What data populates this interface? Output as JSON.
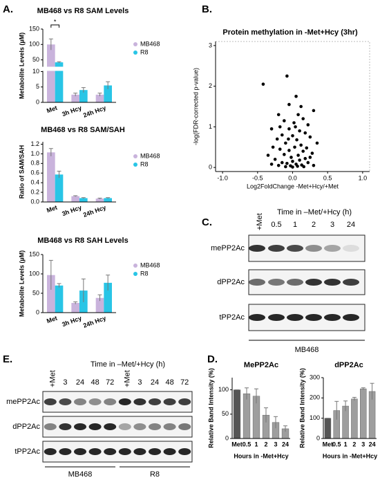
{
  "panel_labels": [
    "A.",
    "B.",
    "C.",
    "D.",
    "E."
  ],
  "chart_data": [
    {
      "type": "bar",
      "title": "MB468 vs R8 SAM Levels",
      "y_label": "Metabolite Levels (µM)",
      "annotation": "*",
      "categories": [
        "Met",
        "3h Hcy",
        "24h Hcy"
      ],
      "series": [
        {
          "name": "MB468",
          "color": "#c9b3dc",
          "values": [
            100,
            2.5,
            2.5
          ],
          "errors": [
            18,
            0.5,
            0.5
          ]
        },
        {
          "name": "R8",
          "color": "#29c5e6",
          "values": [
            42,
            4,
            5.5
          ],
          "errors": [
            2,
            0.8,
            1.2
          ]
        }
      ],
      "ylim": [
        0,
        150
      ],
      "ybreak": [
        10,
        30
      ],
      "yticks": [
        0,
        5,
        10,
        50,
        100,
        150
      ]
    },
    {
      "type": "bar",
      "title": "MB468 vs R8 SAM/SAH",
      "y_label": "Ratio of SAM/SAH",
      "categories": [
        "Met",
        "3h Hcy",
        "24h Hcy"
      ],
      "series": [
        {
          "name": "MB468",
          "color": "#c9b3dc",
          "values": [
            1.03,
            0.12,
            0.07
          ],
          "errors": [
            0.08,
            0.01,
            0.01
          ]
        },
        {
          "name": "R8",
          "color": "#29c5e6",
          "values": [
            0.57,
            0.08,
            0.08
          ],
          "errors": [
            0.07,
            0.01,
            0.01
          ]
        }
      ],
      "ylim": [
        0,
        1.25
      ],
      "yticks": [
        {
          "value": 0,
          "label": "0.0"
        },
        0.2,
        0.4,
        0.6,
        0.8,
        {
          "value": 1,
          "label": "1.0"
        },
        1.2
      ]
    },
    {
      "type": "bar",
      "title": "MB468 vs R8 SAH Levels",
      "y_label": "Metabolite Levels (µM)",
      "categories": [
        "Met",
        "3h Hcy",
        "24h Hcy"
      ],
      "series": [
        {
          "name": "MB468",
          "color": "#c9b3dc",
          "values": [
            97,
            25,
            38
          ],
          "errors": [
            38,
            3,
            8
          ]
        },
        {
          "name": "R8",
          "color": "#29c5e6",
          "values": [
            70,
            57,
            77
          ],
          "errors": [
            5,
            30,
            20
          ]
        }
      ],
      "ylim": [
        0,
        150
      ],
      "yticks": [
        0,
        50,
        100,
        150
      ]
    },
    {
      "type": "scatter",
      "title": "Protein methylation in -Met+Hcy (3hr)",
      "x_label": "Log2FoldChange -Met+Hcy/+Met",
      "y_label": "-log(FDR-corrected p-value)",
      "color": "#000000",
      "x": [
        -0.42,
        -0.08,
        0.05,
        -0.05,
        0.12,
        0.3,
        -0.2,
        0.08,
        0.15,
        -0.12,
        0.02,
        0.22,
        -0.3,
        -0.05,
        0.1,
        0.18,
        -0.15,
        0.0,
        0.25,
        -0.22,
        0.06,
        0.35,
        -0.1,
        0.12,
        -0.28,
        0.03,
        0.2,
        -0.18,
        -0.05,
        0.15,
        0.28,
        -0.35,
        -0.12,
        0.08,
        -0.02,
        0.18,
        -0.25,
        0.1,
        0.0,
        -0.15,
        0.22,
        -0.08,
        0.05,
        0.13,
        -0.2,
        0.3,
        -0.03,
        0.07,
        -0.1,
        0.16,
        0.0,
        -0.3,
        0.25,
        -0.06,
        0.04,
        -0.18
      ],
      "values": [
        2.05,
        2.25,
        1.75,
        1.55,
        1.5,
        1.4,
        1.3,
        1.3,
        1.2,
        1.15,
        1.1,
        1.05,
        0.95,
        0.95,
        0.9,
        0.85,
        0.8,
        0.78,
        0.75,
        0.7,
        0.68,
        0.6,
        0.6,
        0.55,
        0.5,
        0.5,
        0.48,
        0.45,
        0.42,
        0.4,
        0.35,
        0.3,
        0.32,
        0.3,
        0.25,
        0.22,
        0.2,
        0.18,
        0.15,
        0.12,
        0.12,
        0.1,
        0.08,
        0.06,
        0.05,
        0.05,
        0.04,
        0.03,
        0.02,
        0.02,
        0.01,
        0.08,
        0.25,
        0.7,
        1.0,
        1.0
      ],
      "xlim": [
        -1.1,
        1.1
      ],
      "xticks": [
        {
          "value": -1,
          "label": "-1.0"
        },
        -0.5,
        {
          "value": 0,
          "label": "0.0"
        },
        0.5,
        {
          "value": 1,
          "label": "1.0"
        }
      ],
      "ylim": [
        -0.1,
        3.1
      ],
      "yticks": [
        0,
        1,
        2,
        3
      ]
    },
    {
      "type": "bar",
      "title": "MePP2Ac",
      "y_label": "Relative Band Intensity (%)",
      "x_label": "Hours in -Met+Hcy",
      "categories": [
        "Met",
        "0.5",
        "1",
        "2",
        "3",
        "24"
      ],
      "color": "#9e9e9e",
      "values": [
        100,
        92,
        87,
        48,
        33,
        20
      ],
      "errors": [
        0,
        12,
        15,
        15,
        12,
        6
      ],
      "ylim": [
        0,
        125
      ],
      "yticks": [
        0,
        50,
        100
      ]
    },
    {
      "type": "bar",
      "title": "dPP2Ac",
      "y_label": "Relative Band Intensity (%)",
      "x_label": "Hours in -Met+Hcy",
      "categories": [
        "Met",
        "0.5",
        "1",
        "2",
        "3",
        "24"
      ],
      "color": "#9e9e9e",
      "values": [
        100,
        138,
        160,
        195,
        245,
        232
      ],
      "errors": [
        0,
        45,
        25,
        8,
        5,
        40
      ],
      "ylim": [
        0,
        300
      ],
      "yticks": [
        0,
        100,
        200,
        300
      ]
    }
  ],
  "blot_c": {
    "control": "+Met",
    "header": "Time in –Met/+Hcy (h)",
    "lanes": [
      "0.5",
      "1",
      "2",
      "3",
      "24"
    ],
    "rows": [
      "mePP2Ac",
      "dPP2Ac",
      "tPP2Ac"
    ],
    "cell_line": "MB468"
  },
  "blot_e": {
    "header": "Time in –Met/+Hcy (h)",
    "lanes": [
      "+Met",
      "3",
      "24",
      "48",
      "72",
      "+Met",
      "3",
      "24",
      "48",
      "72"
    ],
    "rows": [
      "mePP2Ac",
      "dPP2Ac",
      "tPP2Ac"
    ],
    "groups": [
      "MB468",
      "R8"
    ]
  }
}
